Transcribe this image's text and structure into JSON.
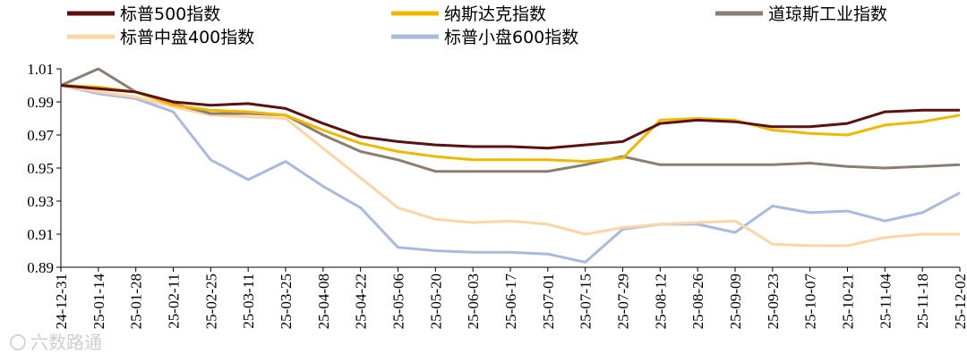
{
  "chart_data": {
    "type": "line",
    "title": "",
    "xlabel": "",
    "ylabel": "",
    "ylim": [
      0.89,
      1.01
    ],
    "yticks": [
      "0.89",
      "0.91",
      "0.93",
      "0.95",
      "0.97",
      "0.99",
      "1.01"
    ],
    "x": [
      "24-12-31",
      "25-01-14",
      "25-01-28",
      "25-02-11",
      "25-02-25",
      "25-03-11",
      "25-03-25",
      "25-04-08",
      "25-04-22",
      "25-05-06",
      "25-05-20",
      "25-06-03",
      "25-06-17",
      "25-07-01",
      "25-07-15",
      "25-07-29",
      "25-08-12",
      "25-08-26",
      "25-09-09",
      "25-09-23",
      "25-10-07",
      "25-10-21",
      "25-11-04",
      "25-11-18",
      "25-12-02"
    ],
    "x_tick_labels": [
      "24-12-31",
      "25-01-14",
      "25-01-28",
      "25-02-11",
      "25-02-25",
      "25-03-11",
      "25-03-25",
      "25-04-08",
      "25-04-22",
      "25-05-06",
      "25-05-20",
      "25-06-03",
      "25-06-17",
      "25-07-01",
      "25-07-15",
      "25-07-29",
      "25-08-12",
      "25-08-26",
      "25-09-09",
      "25-09-23",
      "25-10-07",
      "25-10-21",
      "25-11-04",
      "25-11-18",
      "25-12-02"
    ],
    "legend_position": "top",
    "grid": false,
    "series": [
      {
        "name": "标普500指数",
        "color": "#5c1010",
        "values": [
          1.0,
          0.998,
          0.996,
          0.99,
          0.988,
          0.989,
          0.986,
          0.977,
          0.969,
          0.966,
          0.964,
          0.963,
          0.963,
          0.962,
          0.964,
          0.966,
          0.977,
          0.979,
          0.978,
          0.975,
          0.975,
          0.977,
          0.984,
          0.985,
          0.985
        ]
      },
      {
        "name": "纳斯达克指数",
        "color": "#f2b800",
        "values": [
          1.0,
          0.999,
          0.996,
          0.988,
          0.985,
          0.984,
          0.982,
          0.973,
          0.965,
          0.96,
          0.957,
          0.955,
          0.955,
          0.955,
          0.954,
          0.956,
          0.979,
          0.98,
          0.979,
          0.973,
          0.971,
          0.97,
          0.976,
          0.978,
          0.982
        ]
      },
      {
        "name": "道琼斯工业指数",
        "color": "#8a7e73",
        "values": [
          1.0,
          1.01,
          0.996,
          0.989,
          0.983,
          0.983,
          0.982,
          0.97,
          0.96,
          0.955,
          0.948,
          0.948,
          0.948,
          0.948,
          0.952,
          0.957,
          0.952,
          0.952,
          0.952,
          0.952,
          0.953,
          0.951,
          0.95,
          0.951,
          0.952
        ]
      },
      {
        "name": "标普中盘400指数",
        "color": "#fbd5a5",
        "values": [
          1.0,
          0.996,
          0.993,
          0.987,
          0.982,
          0.981,
          0.98,
          0.962,
          0.944,
          0.926,
          0.919,
          0.917,
          0.918,
          0.916,
          0.91,
          0.914,
          0.916,
          0.917,
          0.918,
          0.904,
          0.903,
          0.903,
          0.908,
          0.91,
          0.91
        ]
      },
      {
        "name": "标普小盘600指数",
        "color": "#a9b9e0",
        "values": [
          1.0,
          0.995,
          0.992,
          0.984,
          0.955,
          0.943,
          0.954,
          0.939,
          0.926,
          0.902,
          0.9,
          0.899,
          0.899,
          0.898,
          0.893,
          0.913,
          0.916,
          0.916,
          0.911,
          0.927,
          0.923,
          0.924,
          0.918,
          0.923,
          0.935
        ]
      }
    ]
  },
  "watermark": {
    "text": "六数路通"
  }
}
